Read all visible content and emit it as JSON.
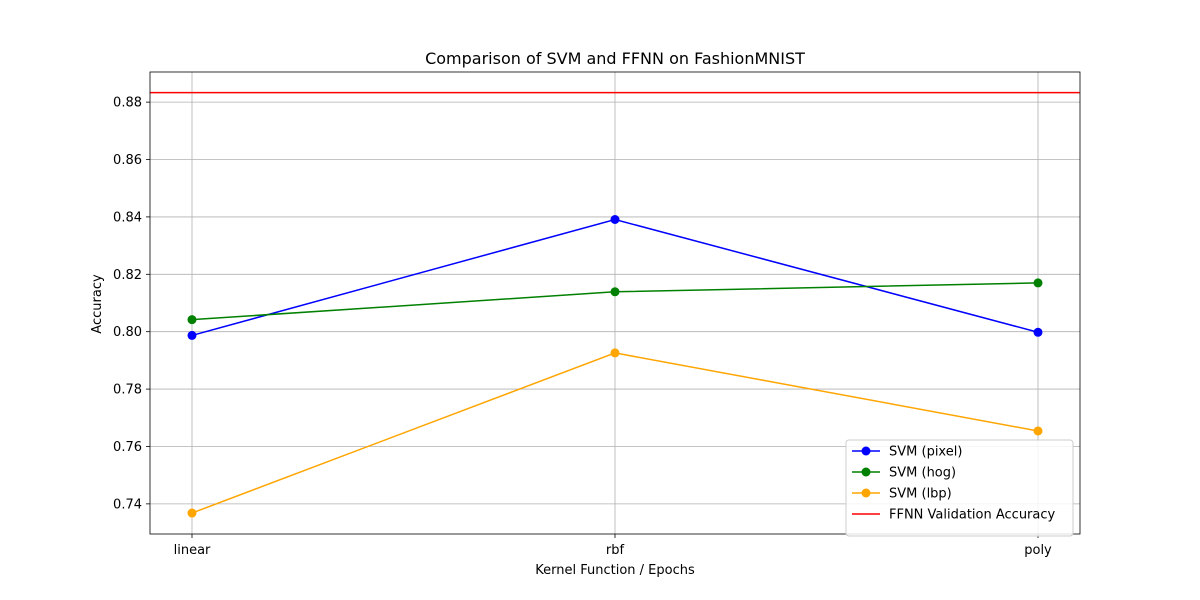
{
  "chart_data": {
    "type": "line",
    "title": "Comparison of SVM and FFNN on FashionMNIST",
    "xlabel": "Kernel Function / Epochs",
    "ylabel": "Accuracy",
    "categories": [
      "linear",
      "rbf",
      "poly"
    ],
    "ylim": [
      0.7295,
      0.8905
    ],
    "yticks": [
      0.74,
      0.76,
      0.78,
      0.8,
      0.82,
      0.84,
      0.86,
      0.88
    ],
    "ytick_labels": [
      "0.74",
      "0.76",
      "0.78",
      "0.80",
      "0.82",
      "0.84",
      "0.86",
      "0.88"
    ],
    "grid": true,
    "legend_position": "lower-right",
    "series": [
      {
        "name": "SVM (pixel)",
        "values": [
          0.7987,
          0.8391,
          0.7998
        ],
        "color": "#0000ff",
        "marker": "circle"
      },
      {
        "name": "SVM (hog)",
        "values": [
          0.8042,
          0.8139,
          0.817
        ],
        "color": "#008000",
        "marker": "circle"
      },
      {
        "name": "SVM (lbp)",
        "values": [
          0.7368,
          0.7926,
          0.7654
        ],
        "color": "#ffa500",
        "marker": "circle"
      }
    ],
    "hlines": [
      {
        "name": "FFNN Validation Accuracy",
        "value": 0.8833,
        "color": "#ff0000"
      }
    ]
  }
}
